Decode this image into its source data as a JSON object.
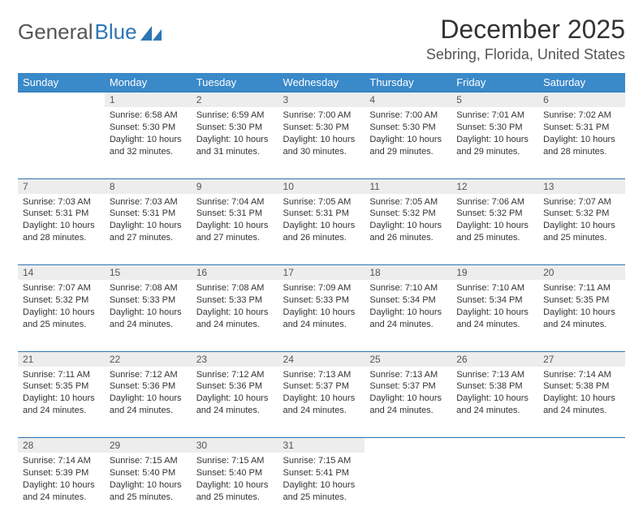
{
  "brand": {
    "part1": "General",
    "part2": "Blue"
  },
  "title": "December 2025",
  "location": "Sebring, Florida, United States",
  "colors": {
    "header_bg": "#3a89c9",
    "header_text": "#ffffff",
    "daynum_bg": "#ededed",
    "rule": "#2d76b5",
    "brand_blue": "#2d76b5",
    "text": "#333333",
    "muted": "#555555"
  },
  "weekdays": [
    "Sunday",
    "Monday",
    "Tuesday",
    "Wednesday",
    "Thursday",
    "Friday",
    "Saturday"
  ],
  "weeks": [
    {
      "nums": [
        "",
        "1",
        "2",
        "3",
        "4",
        "5",
        "6"
      ],
      "cells": [
        null,
        {
          "sunrise": "Sunrise: 6:58 AM",
          "sunset": "Sunset: 5:30 PM",
          "d1": "Daylight: 10 hours",
          "d2": "and 32 minutes."
        },
        {
          "sunrise": "Sunrise: 6:59 AM",
          "sunset": "Sunset: 5:30 PM",
          "d1": "Daylight: 10 hours",
          "d2": "and 31 minutes."
        },
        {
          "sunrise": "Sunrise: 7:00 AM",
          "sunset": "Sunset: 5:30 PM",
          "d1": "Daylight: 10 hours",
          "d2": "and 30 minutes."
        },
        {
          "sunrise": "Sunrise: 7:00 AM",
          "sunset": "Sunset: 5:30 PM",
          "d1": "Daylight: 10 hours",
          "d2": "and 29 minutes."
        },
        {
          "sunrise": "Sunrise: 7:01 AM",
          "sunset": "Sunset: 5:30 PM",
          "d1": "Daylight: 10 hours",
          "d2": "and 29 minutes."
        },
        {
          "sunrise": "Sunrise: 7:02 AM",
          "sunset": "Sunset: 5:31 PM",
          "d1": "Daylight: 10 hours",
          "d2": "and 28 minutes."
        }
      ]
    },
    {
      "nums": [
        "7",
        "8",
        "9",
        "10",
        "11",
        "12",
        "13"
      ],
      "cells": [
        {
          "sunrise": "Sunrise: 7:03 AM",
          "sunset": "Sunset: 5:31 PM",
          "d1": "Daylight: 10 hours",
          "d2": "and 28 minutes."
        },
        {
          "sunrise": "Sunrise: 7:03 AM",
          "sunset": "Sunset: 5:31 PM",
          "d1": "Daylight: 10 hours",
          "d2": "and 27 minutes."
        },
        {
          "sunrise": "Sunrise: 7:04 AM",
          "sunset": "Sunset: 5:31 PM",
          "d1": "Daylight: 10 hours",
          "d2": "and 27 minutes."
        },
        {
          "sunrise": "Sunrise: 7:05 AM",
          "sunset": "Sunset: 5:31 PM",
          "d1": "Daylight: 10 hours",
          "d2": "and 26 minutes."
        },
        {
          "sunrise": "Sunrise: 7:05 AM",
          "sunset": "Sunset: 5:32 PM",
          "d1": "Daylight: 10 hours",
          "d2": "and 26 minutes."
        },
        {
          "sunrise": "Sunrise: 7:06 AM",
          "sunset": "Sunset: 5:32 PM",
          "d1": "Daylight: 10 hours",
          "d2": "and 25 minutes."
        },
        {
          "sunrise": "Sunrise: 7:07 AM",
          "sunset": "Sunset: 5:32 PM",
          "d1": "Daylight: 10 hours",
          "d2": "and 25 minutes."
        }
      ]
    },
    {
      "nums": [
        "14",
        "15",
        "16",
        "17",
        "18",
        "19",
        "20"
      ],
      "cells": [
        {
          "sunrise": "Sunrise: 7:07 AM",
          "sunset": "Sunset: 5:32 PM",
          "d1": "Daylight: 10 hours",
          "d2": "and 25 minutes."
        },
        {
          "sunrise": "Sunrise: 7:08 AM",
          "sunset": "Sunset: 5:33 PM",
          "d1": "Daylight: 10 hours",
          "d2": "and 24 minutes."
        },
        {
          "sunrise": "Sunrise: 7:08 AM",
          "sunset": "Sunset: 5:33 PM",
          "d1": "Daylight: 10 hours",
          "d2": "and 24 minutes."
        },
        {
          "sunrise": "Sunrise: 7:09 AM",
          "sunset": "Sunset: 5:33 PM",
          "d1": "Daylight: 10 hours",
          "d2": "and 24 minutes."
        },
        {
          "sunrise": "Sunrise: 7:10 AM",
          "sunset": "Sunset: 5:34 PM",
          "d1": "Daylight: 10 hours",
          "d2": "and 24 minutes."
        },
        {
          "sunrise": "Sunrise: 7:10 AM",
          "sunset": "Sunset: 5:34 PM",
          "d1": "Daylight: 10 hours",
          "d2": "and 24 minutes."
        },
        {
          "sunrise": "Sunrise: 7:11 AM",
          "sunset": "Sunset: 5:35 PM",
          "d1": "Daylight: 10 hours",
          "d2": "and 24 minutes."
        }
      ]
    },
    {
      "nums": [
        "21",
        "22",
        "23",
        "24",
        "25",
        "26",
        "27"
      ],
      "cells": [
        {
          "sunrise": "Sunrise: 7:11 AM",
          "sunset": "Sunset: 5:35 PM",
          "d1": "Daylight: 10 hours",
          "d2": "and 24 minutes."
        },
        {
          "sunrise": "Sunrise: 7:12 AM",
          "sunset": "Sunset: 5:36 PM",
          "d1": "Daylight: 10 hours",
          "d2": "and 24 minutes."
        },
        {
          "sunrise": "Sunrise: 7:12 AM",
          "sunset": "Sunset: 5:36 PM",
          "d1": "Daylight: 10 hours",
          "d2": "and 24 minutes."
        },
        {
          "sunrise": "Sunrise: 7:13 AM",
          "sunset": "Sunset: 5:37 PM",
          "d1": "Daylight: 10 hours",
          "d2": "and 24 minutes."
        },
        {
          "sunrise": "Sunrise: 7:13 AM",
          "sunset": "Sunset: 5:37 PM",
          "d1": "Daylight: 10 hours",
          "d2": "and 24 minutes."
        },
        {
          "sunrise": "Sunrise: 7:13 AM",
          "sunset": "Sunset: 5:38 PM",
          "d1": "Daylight: 10 hours",
          "d2": "and 24 minutes."
        },
        {
          "sunrise": "Sunrise: 7:14 AM",
          "sunset": "Sunset: 5:38 PM",
          "d1": "Daylight: 10 hours",
          "d2": "and 24 minutes."
        }
      ]
    },
    {
      "nums": [
        "28",
        "29",
        "30",
        "31",
        "",
        "",
        ""
      ],
      "cells": [
        {
          "sunrise": "Sunrise: 7:14 AM",
          "sunset": "Sunset: 5:39 PM",
          "d1": "Daylight: 10 hours",
          "d2": "and 24 minutes."
        },
        {
          "sunrise": "Sunrise: 7:15 AM",
          "sunset": "Sunset: 5:40 PM",
          "d1": "Daylight: 10 hours",
          "d2": "and 25 minutes."
        },
        {
          "sunrise": "Sunrise: 7:15 AM",
          "sunset": "Sunset: 5:40 PM",
          "d1": "Daylight: 10 hours",
          "d2": "and 25 minutes."
        },
        {
          "sunrise": "Sunrise: 7:15 AM",
          "sunset": "Sunset: 5:41 PM",
          "d1": "Daylight: 10 hours",
          "d2": "and 25 minutes."
        },
        null,
        null,
        null
      ]
    }
  ]
}
